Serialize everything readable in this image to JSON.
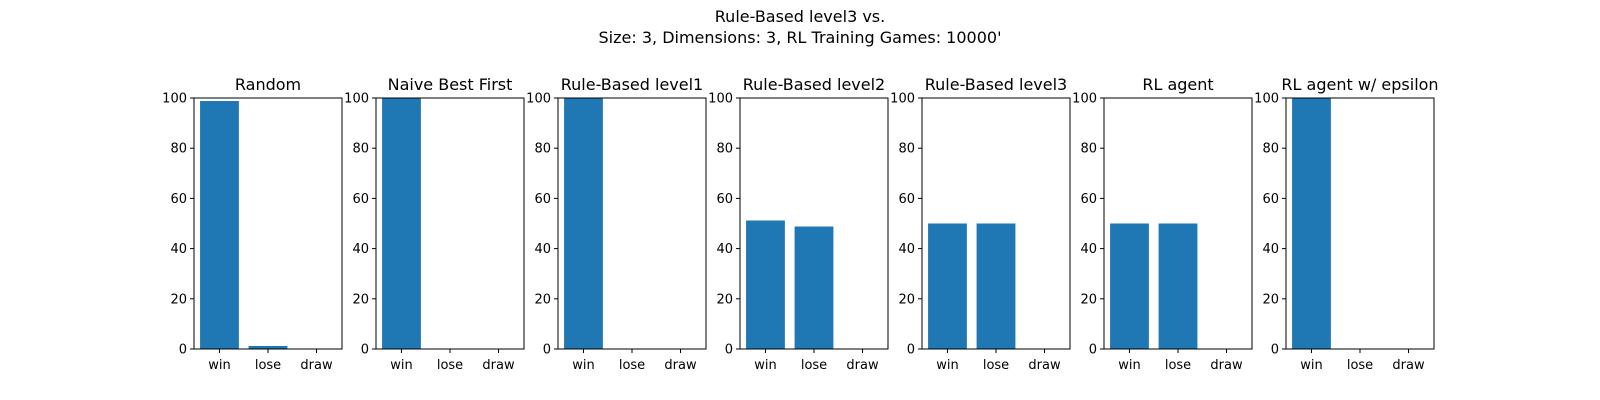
{
  "figure": {
    "title_lines": [
      "Rule-Based level3 vs.",
      "Size: 3, Dimensions: 3, RL Training Games: 10000'"
    ]
  },
  "chart_data": {
    "type": "bar",
    "bar_color": "#1f77b4",
    "categories": [
      "win",
      "lose",
      "draw"
    ],
    "ylim": [
      0,
      100
    ],
    "yticks": [
      0,
      20,
      40,
      60,
      80,
      100
    ],
    "grid": false,
    "panels": [
      {
        "title": "Random",
        "values": [
          98.8,
          1.2,
          0
        ]
      },
      {
        "title": "Naive Best First",
        "values": [
          100,
          0,
          0
        ]
      },
      {
        "title": "Rule-Based level1",
        "values": [
          100,
          0,
          0
        ]
      },
      {
        "title": "Rule-Based level2",
        "values": [
          51.2,
          48.8,
          0
        ]
      },
      {
        "title": "Rule-Based level3",
        "values": [
          50,
          50,
          0
        ]
      },
      {
        "title": "RL agent",
        "values": [
          50,
          50,
          0
        ]
      },
      {
        "title": "RL agent w/ epsilon",
        "values": [
          100,
          0,
          0
        ]
      }
    ]
  }
}
